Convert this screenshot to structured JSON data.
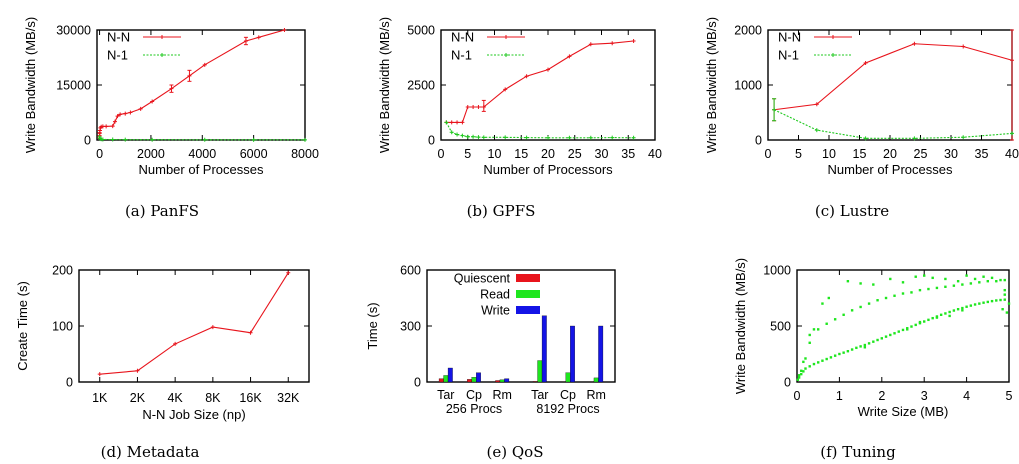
{
  "chart_data": [
    {
      "type": "line",
      "caption": "(a) PanFS",
      "xlabel": "Number of Processes",
      "ylabel": "Write Bandwidth (MB/s)",
      "xlim": [
        -100,
        8000
      ],
      "ylim": [
        0,
        30000
      ],
      "xticks": [
        0,
        2000,
        4000,
        6000,
        8000
      ],
      "yticks": [
        0,
        15000,
        30000
      ],
      "legend_position": "top-left",
      "series": [
        {
          "name": "N-N",
          "color": "#e8141c",
          "dashed": false,
          "x": [
            1,
            4,
            16,
            32,
            64,
            128,
            256,
            512,
            600,
            700,
            800,
            1000,
            1200,
            1600,
            2048,
            2800,
            3500,
            4096,
            5700,
            6200,
            7200
          ],
          "y": [
            1200,
            1800,
            2600,
            3300,
            3600,
            3700,
            3700,
            3800,
            5000,
            6500,
            7000,
            7200,
            7500,
            8500,
            10500,
            14000,
            17500,
            20500,
            27000,
            28000,
            30000
          ],
          "err_x": [
            1,
            2800,
            3500,
            5700
          ],
          "err_lo": [
            500,
            13000,
            16000,
            26000
          ],
          "err_hi": [
            2000,
            15000,
            19000,
            28000
          ]
        },
        {
          "name": "N-1",
          "color": "#1ec81e",
          "dashed": true,
          "x": [
            1,
            16,
            64,
            128,
            512,
            1000,
            2048,
            4096,
            6000,
            8000
          ],
          "y": [
            900,
            400,
            200,
            150,
            120,
            100,
            80,
            60,
            50,
            50
          ]
        }
      ]
    },
    {
      "type": "line",
      "caption": "(b) GPFS",
      "xlabel": "Number of Processors",
      "ylabel": "Write Bandwidth (MB/s)",
      "xlim": [
        0,
        40
      ],
      "ylim": [
        0,
        5000
      ],
      "xticks": [
        0,
        5,
        10,
        15,
        20,
        25,
        30,
        35,
        40
      ],
      "yticks": [
        0,
        2500,
        5000
      ],
      "legend_position": "top-left",
      "series": [
        {
          "name": "N-N",
          "color": "#e8141c",
          "dashed": false,
          "x": [
            1,
            2,
            3,
            4,
            5,
            6,
            7,
            8,
            12,
            16,
            20,
            24,
            28,
            32,
            36
          ],
          "y": [
            800,
            800,
            800,
            800,
            1500,
            1500,
            1500,
            1500,
            2300,
            2900,
            3200,
            3800,
            4350,
            4400,
            4500
          ],
          "err_x": [
            8
          ],
          "err_lo": [
            1300
          ],
          "err_hi": [
            1800
          ]
        },
        {
          "name": "N-1",
          "color": "#1ec81e",
          "dashed": true,
          "x": [
            1,
            2,
            3,
            4,
            5,
            6,
            7,
            8,
            12,
            16,
            20,
            24,
            28,
            32,
            36
          ],
          "y": [
            800,
            350,
            250,
            200,
            150,
            150,
            130,
            120,
            120,
            110,
            100,
            100,
            100,
            110,
            100
          ]
        }
      ]
    },
    {
      "type": "line",
      "caption": "(c) Lustre",
      "xlabel": "Number of Processes",
      "ylabel": "Write Bandwidth (MB/s)",
      "xlim": [
        0,
        40
      ],
      "ylim": [
        0,
        2000
      ],
      "xticks": [
        0,
        5,
        10,
        15,
        20,
        25,
        30,
        35,
        40
      ],
      "yticks": [
        0,
        1000,
        2000
      ],
      "legend_position": "top-left",
      "series": [
        {
          "name": "N-N",
          "color": "#e8141c",
          "dashed": false,
          "x": [
            1,
            8,
            16,
            24,
            32,
            40
          ],
          "y": [
            550,
            650,
            1400,
            1750,
            1700,
            1450
          ],
          "err_x": [
            1,
            40
          ],
          "err_lo": [
            350,
            0
          ],
          "err_hi": [
            750,
            2000
          ]
        },
        {
          "name": "N-1",
          "color": "#1ec81e",
          "dashed": true,
          "x": [
            1,
            8,
            16,
            24,
            32,
            40
          ],
          "y": [
            550,
            180,
            30,
            30,
            50,
            120
          ],
          "err_x": [
            1
          ],
          "err_lo": [
            350
          ],
          "err_hi": [
            750
          ]
        }
      ]
    },
    {
      "type": "line",
      "caption": "(d) Metadata",
      "xlabel": "N-N Job Size (np)",
      "ylabel": "Create Time (s)",
      "categories": [
        "1K",
        "2K",
        "4K",
        "8K",
        "16K",
        "32K"
      ],
      "ylim": [
        0,
        200
      ],
      "yticks": [
        0,
        100,
        200
      ],
      "series": [
        {
          "color": "#e8141c",
          "dashed": false,
          "values": [
            14,
            20,
            68,
            98,
            88,
            195
          ]
        }
      ]
    },
    {
      "type": "bar",
      "caption": "(e) QoS",
      "ylabel": "Time (s)",
      "ylim": [
        0,
        600
      ],
      "yticks": [
        0,
        300,
        600
      ],
      "legend_position": "top-left",
      "groups": [
        {
          "label": "256 Procs",
          "categories": [
            "Tar",
            "Cp",
            "Rm"
          ]
        },
        {
          "label": "8192 Procs",
          "categories": [
            "Tar",
            "Cp",
            "Rm"
          ]
        }
      ],
      "series": [
        {
          "name": "Quiescent",
          "color": "#e8141c",
          "values": [
            18,
            14,
            8,
            3,
            2,
            2
          ]
        },
        {
          "name": "Read",
          "color": "#1ee61e",
          "values": [
            35,
            25,
            12,
            115,
            50,
            22
          ]
        },
        {
          "name": "Write",
          "color": "#1414e6",
          "values": [
            75,
            50,
            18,
            355,
            300,
            300
          ]
        }
      ]
    },
    {
      "type": "scatter",
      "caption": "(f) Tuning",
      "xlabel": "Write Size (MB)",
      "ylabel": "Write Bandwidth (MB/s)",
      "xlim": [
        0,
        5
      ],
      "ylim": [
        0,
        1000
      ],
      "xticks": [
        0,
        1,
        2,
        3,
        4,
        5
      ],
      "yticks": [
        0,
        500,
        1000
      ],
      "color": "#1ee61e",
      "points": [
        [
          0.05,
          60
        ],
        [
          0.1,
          100
        ],
        [
          0.15,
          180
        ],
        [
          0.2,
          210
        ],
        [
          0.3,
          350
        ],
        [
          0.4,
          470
        ],
        [
          0.6,
          700
        ],
        [
          0.75,
          750
        ],
        [
          1.2,
          900
        ],
        [
          1.5,
          880
        ],
        [
          1.8,
          870
        ],
        [
          2.2,
          920
        ],
        [
          2.5,
          890
        ],
        [
          2.8,
          940
        ],
        [
          3.0,
          950
        ],
        [
          3.2,
          930
        ],
        [
          3.5,
          920
        ],
        [
          3.8,
          900
        ],
        [
          4.0,
          950
        ],
        [
          4.2,
          920
        ],
        [
          4.4,
          940
        ],
        [
          4.6,
          930
        ],
        [
          4.8,
          910
        ],
        [
          4.9,
          820
        ],
        [
          0.3,
          420
        ],
        [
          0.5,
          470
        ],
        [
          0.7,
          520
        ],
        [
          0.9,
          560
        ],
        [
          1.1,
          600
        ],
        [
          1.3,
          640
        ],
        [
          1.5,
          670
        ],
        [
          1.7,
          700
        ],
        [
          1.9,
          730
        ],
        [
          2.1,
          750
        ],
        [
          2.3,
          770
        ],
        [
          2.5,
          790
        ],
        [
          2.7,
          800
        ],
        [
          2.9,
          820
        ],
        [
          3.1,
          830
        ],
        [
          3.3,
          840
        ],
        [
          3.5,
          850
        ],
        [
          3.7,
          860
        ],
        [
          3.9,
          870
        ],
        [
          4.1,
          880
        ],
        [
          4.3,
          890
        ],
        [
          4.5,
          900
        ],
        [
          4.7,
          900
        ],
        [
          4.9,
          910
        ],
        [
          0.02,
          20
        ],
        [
          0.05,
          40
        ],
        [
          0.1,
          70
        ],
        [
          0.15,
          95
        ],
        [
          0.2,
          120
        ],
        [
          0.3,
          140
        ],
        [
          0.4,
          160
        ],
        [
          0.5,
          175
        ],
        [
          0.6,
          190
        ],
        [
          0.7,
          205
        ],
        [
          0.8,
          220
        ],
        [
          0.9,
          235
        ],
        [
          1.0,
          250
        ],
        [
          1.1,
          262
        ],
        [
          1.2,
          275
        ],
        [
          1.3,
          290
        ],
        [
          1.4,
          305
        ],
        [
          1.5,
          318
        ],
        [
          1.6,
          330
        ],
        [
          1.7,
          345
        ],
        [
          1.8,
          360
        ],
        [
          1.9,
          375
        ],
        [
          2.0,
          390
        ],
        [
          2.1,
          405
        ],
        [
          2.2,
          420
        ],
        [
          2.3,
          435
        ],
        [
          2.4,
          450
        ],
        [
          2.5,
          465
        ],
        [
          2.6,
          480
        ],
        [
          2.7,
          495
        ],
        [
          2.8,
          510
        ],
        [
          2.9,
          525
        ],
        [
          3.0,
          540
        ],
        [
          3.1,
          555
        ],
        [
          3.2,
          570
        ],
        [
          3.3,
          585
        ],
        [
          3.4,
          600
        ],
        [
          3.5,
          612
        ],
        [
          3.6,
          625
        ],
        [
          3.7,
          638
        ],
        [
          3.8,
          650
        ],
        [
          3.9,
          660
        ],
        [
          4.0,
          672
        ],
        [
          4.1,
          682
        ],
        [
          4.2,
          692
        ],
        [
          4.3,
          700
        ],
        [
          4.4,
          708
        ],
        [
          4.5,
          715
        ],
        [
          4.6,
          722
        ],
        [
          4.7,
          728
        ],
        [
          4.8,
          732
        ],
        [
          4.9,
          735
        ],
        [
          5.0,
          700
        ],
        [
          4.95,
          620
        ],
        [
          4.9,
          780
        ],
        [
          4.85,
          650
        ],
        [
          3.6,
          590
        ],
        [
          2.6,
          470
        ],
        [
          3.9,
          640
        ],
        [
          1.6,
          310
        ],
        [
          2.9,
          535
        ],
        [
          3.3,
          575
        ]
      ]
    }
  ]
}
